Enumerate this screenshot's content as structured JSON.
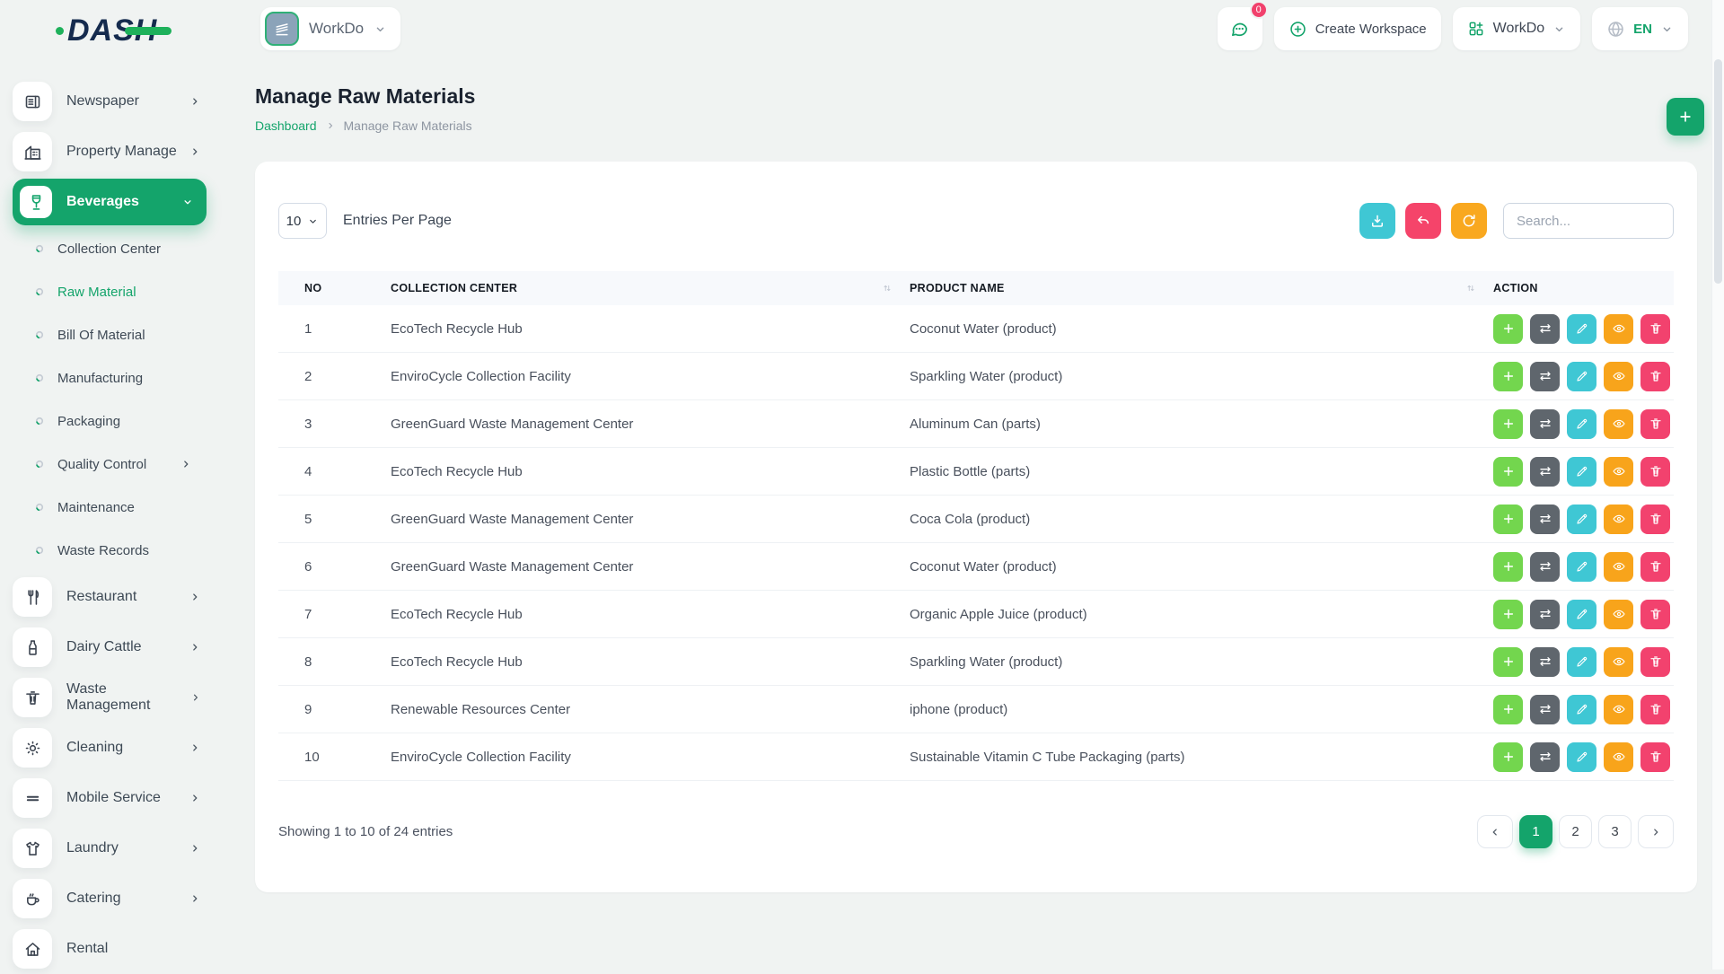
{
  "brand": {
    "logo_text": "DASH"
  },
  "topbar": {
    "workspace_pill": {
      "label": "WorkDo",
      "icon": "workspace"
    },
    "chat": {
      "badge": "0"
    },
    "create_workspace": {
      "label": "Create Workspace"
    },
    "workspace_menu": {
      "label": "WorkDo"
    },
    "language": {
      "label": "EN"
    }
  },
  "sidebar": {
    "items": [
      {
        "label": "Newspaper",
        "icon": "newspaper",
        "type": "main",
        "chevron": "right"
      },
      {
        "label": "Property Manage",
        "icon": "building",
        "type": "main",
        "chevron": "right"
      },
      {
        "label": "Beverages",
        "icon": "beverage",
        "type": "main",
        "chevron": "down",
        "active": true
      },
      {
        "label": "Collection Center",
        "type": "sub"
      },
      {
        "label": "Raw Material",
        "type": "sub",
        "active": true
      },
      {
        "label": "Bill Of Material",
        "type": "sub"
      },
      {
        "label": "Manufacturing",
        "type": "sub"
      },
      {
        "label": "Packaging",
        "type": "sub"
      },
      {
        "label": "Quality Control",
        "type": "sub",
        "chevron": "right"
      },
      {
        "label": "Maintenance",
        "type": "sub"
      },
      {
        "label": "Waste Records",
        "type": "sub"
      },
      {
        "label": "Restaurant",
        "icon": "restaurant",
        "type": "main",
        "chevron": "right"
      },
      {
        "label": "Dairy Cattle",
        "icon": "dairy",
        "type": "main",
        "chevron": "right"
      },
      {
        "label": "Waste Management",
        "icon": "trash",
        "type": "main",
        "chevron": "right"
      },
      {
        "label": "Cleaning",
        "icon": "cleaning",
        "type": "main",
        "chevron": "right"
      },
      {
        "label": "Mobile Service",
        "icon": "mobile",
        "type": "main",
        "chevron": "right"
      },
      {
        "label": "Laundry",
        "icon": "laundry",
        "type": "main",
        "chevron": "right"
      },
      {
        "label": "Catering",
        "icon": "catering",
        "type": "main",
        "chevron": "right"
      },
      {
        "label": "Rental",
        "icon": "rental",
        "type": "main"
      }
    ]
  },
  "page": {
    "title": "Manage Raw Materials",
    "breadcrumb": {
      "root": "Dashboard",
      "current": "Manage Raw Materials"
    }
  },
  "toolbar": {
    "entries_value": "10",
    "entries_label": "Entries Per Page",
    "search_placeholder": "Search...",
    "buttons": [
      {
        "name": "export",
        "icon": "download",
        "color": "#3fc7d4"
      },
      {
        "name": "undo",
        "icon": "undo",
        "color": "#f5446a"
      },
      {
        "name": "refresh",
        "icon": "refresh",
        "color": "#f9a81f"
      }
    ]
  },
  "table": {
    "columns": [
      {
        "label": "NO",
        "sortable": false
      },
      {
        "label": "COLLECTION CENTER",
        "sortable": true
      },
      {
        "label": "PRODUCT NAME",
        "sortable": true
      },
      {
        "label": "ACTION",
        "sortable": false
      }
    ],
    "rows": [
      {
        "no": "1",
        "collection_center": "EcoTech Recycle Hub",
        "product_name": "Coconut Water (product)"
      },
      {
        "no": "2",
        "collection_center": "EnviroCycle Collection Facility",
        "product_name": "Sparkling Water (product)"
      },
      {
        "no": "3",
        "collection_center": "GreenGuard Waste Management Center",
        "product_name": "Aluminum Can (parts)"
      },
      {
        "no": "4",
        "collection_center": "EcoTech Recycle Hub",
        "product_name": "Plastic Bottle (parts)"
      },
      {
        "no": "5",
        "collection_center": "GreenGuard Waste Management Center",
        "product_name": "Coca Cola (product)"
      },
      {
        "no": "6",
        "collection_center": "GreenGuard Waste Management Center",
        "product_name": "Coconut Water (product)"
      },
      {
        "no": "7",
        "collection_center": "EcoTech Recycle Hub",
        "product_name": "Organic Apple Juice (product)"
      },
      {
        "no": "8",
        "collection_center": "EcoTech Recycle Hub",
        "product_name": "Sparkling Water (product)"
      },
      {
        "no": "9",
        "collection_center": "Renewable Resources Center",
        "product_name": "iphone (product)"
      },
      {
        "no": "10",
        "collection_center": "EnviroCycle Collection Facility",
        "product_name": "Sustainable Vitamin C Tube Packaging (parts)"
      }
    ],
    "row_actions": [
      {
        "name": "add",
        "icon": "plus",
        "color": "#73d64e"
      },
      {
        "name": "swap",
        "icon": "swap",
        "color": "#5f666d"
      },
      {
        "name": "edit",
        "icon": "pencil",
        "color": "#3fc7d4"
      },
      {
        "name": "view",
        "icon": "eye",
        "color": "#f8a41b"
      },
      {
        "name": "delete",
        "icon": "trash",
        "color": "#f2426e"
      }
    ]
  },
  "pagination": {
    "showing_text": "Showing 1 to 10 of 24 entries",
    "pages": [
      "1",
      "2",
      "3"
    ],
    "active_page": "1"
  },
  "colors": {
    "primary_green": "#14a46b",
    "badge_red": "#f1416c",
    "logo_navy": "#152b4e",
    "logo_green": "#1eb15b",
    "row_add_green": "#73d64e",
    "swap_gray": "#5f666d",
    "edit_cyan": "#3fc7d4",
    "view_orange": "#f8a41b",
    "delete_pink": "#f2426e"
  }
}
